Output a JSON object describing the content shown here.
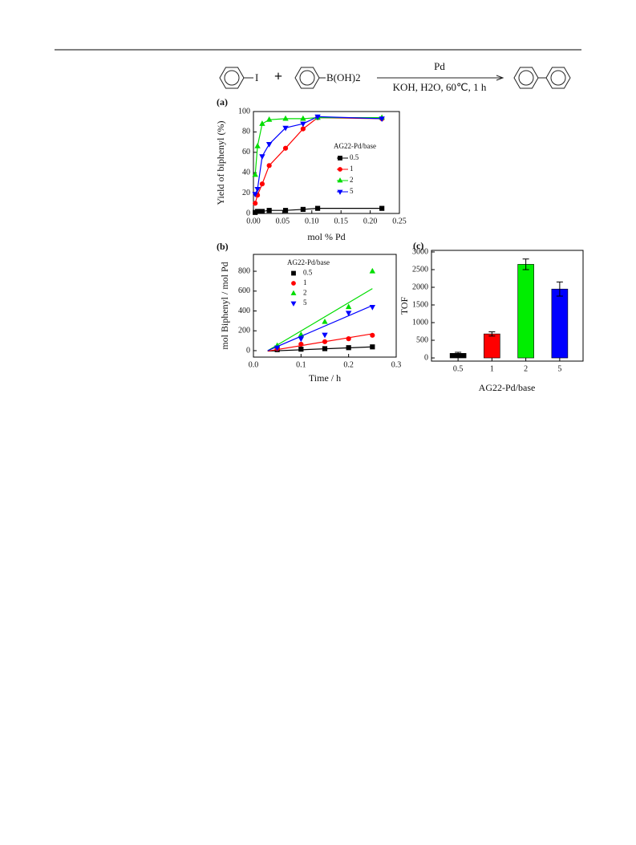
{
  "scheme": {
    "iodide_label": "I",
    "plus": "+",
    "boronic_label": "B(OH)2",
    "catalyst": "Pd",
    "conditions": "KOH, H2O, 60℃, 1 h"
  },
  "chart_data": [
    {
      "type": "line",
      "panel_label": "(a)",
      "x_label": "mol % Pd",
      "y_label": "Yield of biphenyl (%)",
      "legend_title": "AG22-Pd/base",
      "x": [
        0.003,
        0.007,
        0.015,
        0.027,
        0.055,
        0.085,
        0.11,
        0.22
      ],
      "series": [
        {
          "name": "0.5",
          "color": "#000000",
          "marker": "square",
          "values": [
            1,
            2,
            2,
            3,
            3,
            4,
            5,
            5
          ]
        },
        {
          "name": "1",
          "color": "#ff0000",
          "marker": "circle",
          "values": [
            10,
            18,
            29,
            47,
            64,
            83,
            94,
            93
          ]
        },
        {
          "name": "2",
          "color": "#00dd00",
          "marker": "triangle-up",
          "values": [
            38,
            66,
            88,
            92,
            93,
            93,
            94,
            94
          ]
        },
        {
          "name": "5",
          "color": "#0000ff",
          "marker": "triangle-down",
          "values": [
            19,
            24,
            56,
            68,
            84,
            88,
            95,
            93
          ]
        }
      ],
      "xlim": [
        0,
        0.25
      ],
      "xticks": [
        {
          "value": 0,
          "label": "0.00"
        },
        {
          "value": 0.05,
          "label": "0.05"
        },
        {
          "value": 0.1,
          "label": "0.10"
        },
        {
          "value": 0.15,
          "label": "0.15"
        },
        {
          "value": 0.2,
          "label": "0.20"
        },
        {
          "value": 0.25,
          "label": "0.25"
        }
      ],
      "ylim": [
        0,
        100
      ],
      "yticks": [
        0,
        20,
        40,
        60,
        80,
        100
      ]
    },
    {
      "type": "scatter",
      "panel_label": "(b)",
      "x_label": "Time / h",
      "y_label": "mol Biphenyl / mol Pd",
      "legend_title": "AG22-Pd/base",
      "x": [
        0.05,
        0.1,
        0.15,
        0.2,
        0.25
      ],
      "series": [
        {
          "name": "0.5",
          "color": "#000000",
          "marker": "square",
          "values": [
            10,
            15,
            20,
            30,
            38
          ],
          "fit": {
            "x": [
              0.03,
              0.25
            ],
            "values": [
              -5,
              38
            ]
          }
        },
        {
          "name": "1",
          "color": "#ff0000",
          "marker": "circle",
          "values": [
            20,
            65,
            90,
            120,
            155
          ],
          "fit": {
            "x": [
              0.03,
              0.25
            ],
            "values": [
              -5,
              170
            ]
          }
        },
        {
          "name": "2",
          "color": "#00dd00",
          "marker": "triangle-up",
          "values": [
            50,
            160,
            290,
            440,
            800
          ],
          "fit": {
            "x": [
              0.03,
              0.25
            ],
            "values": [
              0,
              625
            ]
          }
        },
        {
          "name": "5",
          "color": "#0000ff",
          "marker": "triangle-down",
          "values": [
            30,
            120,
            160,
            380,
            440
          ],
          "fit": {
            "x": [
              0.03,
              0.25
            ],
            "values": [
              0,
              455
            ]
          }
        }
      ],
      "xlim": [
        0,
        0.3
      ],
      "xticks": [
        {
          "value": 0,
          "label": "0.0"
        },
        {
          "value": 0.1,
          "label": "0.1"
        },
        {
          "value": 0.2,
          "label": "0.2"
        },
        {
          "value": 0.3,
          "label": "0.3"
        }
      ],
      "ylim": [
        -65,
        970
      ],
      "yticks": [
        0,
        200,
        400,
        600,
        800
      ]
    },
    {
      "type": "bar",
      "panel_label": "(c)",
      "x_label": "AG22-Pd/base",
      "y_label": "TOF",
      "categories": [
        "0.5",
        "1",
        "2",
        "5"
      ],
      "values": [
        130,
        680,
        2650,
        1950
      ],
      "errors": [
        30,
        60,
        150,
        200
      ],
      "colors": [
        "#000000",
        "#ff0000",
        "#00ee00",
        "#0000ff"
      ],
      "ylim": [
        -90,
        3045
      ],
      "yticks": [
        0,
        500,
        1000,
        1500,
        2000,
        2500,
        3000
      ]
    }
  ]
}
